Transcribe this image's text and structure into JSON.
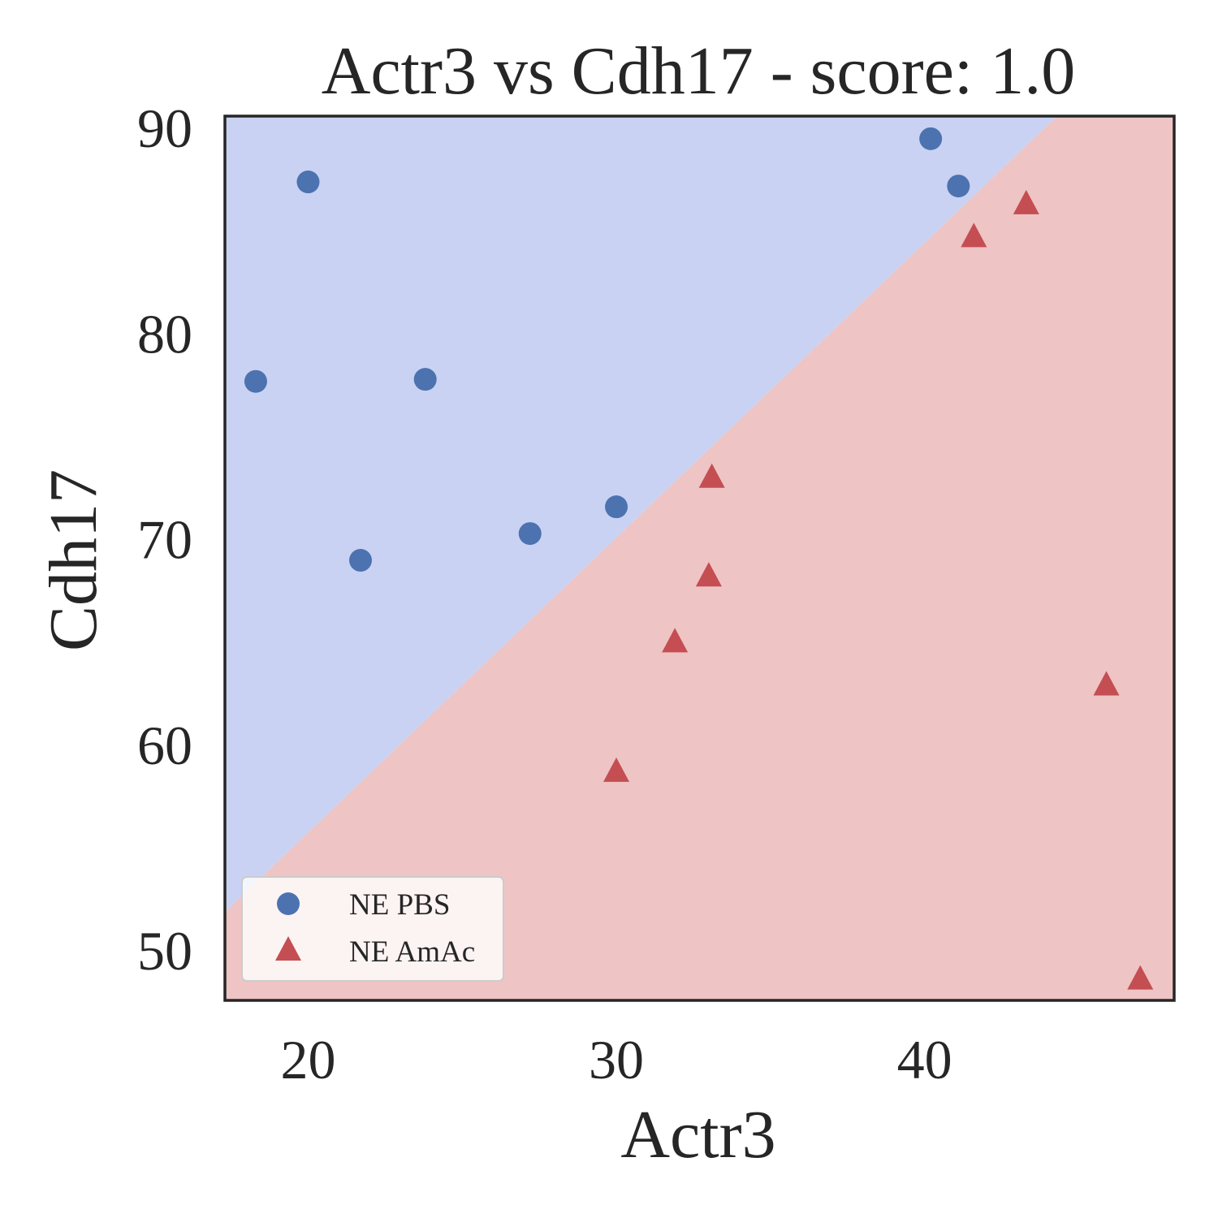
{
  "chart_data": {
    "type": "scatter",
    "title": "Actr3 vs Cdh17 - score: 1.0",
    "xlabel": "Actr3",
    "ylabel": "Cdh17",
    "xlim": [
      17.3,
      48.1
    ],
    "ylim": [
      47.6,
      90.6
    ],
    "xticks": [
      20,
      30,
      40
    ],
    "yticks": [
      50,
      60,
      70,
      80,
      90
    ],
    "grid": false,
    "legend_position": "lower-left",
    "decision_boundary": {
      "points": [
        [
          17.3,
          51.9
        ],
        [
          44.3,
          90.6
        ]
      ],
      "class_above": "NE PBS",
      "class_below": "NE AmAc"
    },
    "region_colors": {
      "NE PBS": "#c9d2f2",
      "NE AmAc": "#eec4c4"
    },
    "series": [
      {
        "name": "NE PBS",
        "marker": "circle",
        "color": "#4c72b0",
        "points": [
          [
            18.3,
            77.7
          ],
          [
            20.0,
            87.4
          ],
          [
            21.7,
            69.0
          ],
          [
            23.8,
            77.8
          ],
          [
            27.2,
            70.3
          ],
          [
            30.0,
            71.6
          ],
          [
            40.2,
            89.5
          ],
          [
            41.1,
            87.2
          ]
        ]
      },
      {
        "name": "NE AmAc",
        "marker": "triangle",
        "color": "#c44e52",
        "points": [
          [
            30.0,
            58.7
          ],
          [
            31.9,
            65.0
          ],
          [
            33.0,
            68.2
          ],
          [
            33.1,
            73.0
          ],
          [
            41.6,
            84.7
          ],
          [
            43.3,
            86.3
          ],
          [
            45.9,
            62.9
          ],
          [
            47.0,
            48.6
          ]
        ]
      }
    ]
  }
}
